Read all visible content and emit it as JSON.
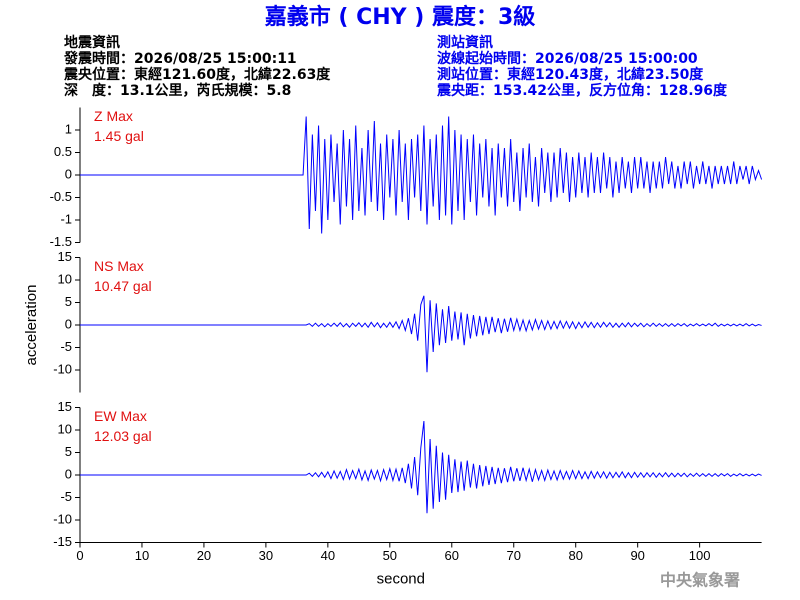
{
  "header": {
    "title": "嘉義市 ( CHY ) 震度：3級",
    "left": [
      "地震資訊",
      "發震時間：2026/08/25 15:00:11",
      "震央位置：東經121.60度，北緯22.63度",
      "深　度：13.1公里，芮氏規模：5.8"
    ],
    "right": [
      "測站資訊",
      "波線起始時間：2026/08/25 15:00:00",
      "測站位置：東經120.43度，北緯23.50度",
      "震央距：153.42公里，反方位角：128.96度"
    ]
  },
  "footer": "中央氣象署",
  "chart_data": [
    {
      "type": "line",
      "label": "Z Max",
      "max_label": "1.45 gal",
      "color": "#0000ff",
      "xlim": [
        0,
        110
      ],
      "ylim": [
        -1.5,
        1.5
      ],
      "yticks": [
        -1.5,
        -1,
        -0.5,
        0,
        0.5,
        1
      ],
      "x": [
        0,
        36,
        36.5,
        37,
        37.5,
        38,
        38.5,
        39,
        39.5,
        40,
        40.5,
        41,
        41.5,
        42,
        42.5,
        43,
        43.5,
        44,
        44.5,
        45,
        45.5,
        46,
        46.5,
        47,
        47.5,
        48,
        48.5,
        49,
        49.5,
        50,
        50.5,
        51,
        51.5,
        52,
        52.5,
        53,
        53.5,
        54,
        54.5,
        55,
        55.5,
        56,
        56.5,
        57,
        57.5,
        58,
        58.5,
        59,
        59.5,
        60,
        60.5,
        61,
        61.5,
        62,
        62.5,
        63,
        63.5,
        64,
        64.5,
        65,
        65.5,
        66,
        66.5,
        67,
        67.5,
        68,
        68.5,
        69,
        69.5,
        70,
        70.5,
        71,
        71.5,
        72,
        72.5,
        73,
        73.5,
        74,
        74.5,
        75,
        75.5,
        76,
        76.5,
        77,
        77.5,
        78,
        78.5,
        79,
        79.5,
        80,
        80.5,
        81,
        81.5,
        82,
        82.5,
        83,
        83.5,
        84,
        84.5,
        85,
        85.5,
        86,
        86.5,
        87,
        87.5,
        88,
        88.5,
        89,
        89.5,
        90,
        90.5,
        91,
        91.5,
        92,
        92.5,
        93,
        93.5,
        94,
        94.5,
        95,
        95.5,
        96,
        96.5,
        97,
        97.5,
        98,
        98.5,
        99,
        99.5,
        100,
        100.5,
        101,
        101.5,
        102,
        102.5,
        103,
        103.5,
        104,
        104.5,
        105,
        105.5,
        106,
        106.5,
        107,
        107.5,
        108,
        108.5,
        109,
        109.5,
        110
      ],
      "values": [
        0,
        0,
        1.3,
        -1.2,
        0.9,
        -0.8,
        1.1,
        -1.3,
        0.8,
        -1.0,
        0.9,
        -0.6,
        0.7,
        -1.1,
        1.0,
        -0.7,
        0.8,
        -1.0,
        1.1,
        -0.8,
        0.6,
        -0.9,
        1.0,
        -0.6,
        1.2,
        -0.8,
        0.7,
        -1.0,
        0.9,
        -0.5,
        0.8,
        -0.9,
        1.0,
        -0.6,
        0.7,
        -1.0,
        0.8,
        -0.5,
        0.9,
        -0.8,
        1.1,
        -1.1,
        0.8,
        -0.7,
        0.9,
        -1.0,
        1.1,
        -0.9,
        1.3,
        -1.1,
        1.0,
        -0.8,
        0.9,
        -1.0,
        0.8,
        -0.6,
        0.9,
        -0.9,
        0.7,
        -0.5,
        0.8,
        -0.7,
        0.6,
        -0.9,
        0.7,
        -0.5,
        0.6,
        -0.7,
        0.8,
        -0.6,
        0.5,
        -0.8,
        0.6,
        -0.5,
        0.7,
        -0.6,
        0.4,
        -0.7,
        0.6,
        -0.4,
        0.5,
        -0.6,
        0.5,
        -0.5,
        0.6,
        -0.4,
        0.5,
        -0.6,
        0.4,
        -0.5,
        0.5,
        -0.4,
        0.4,
        -0.5,
        0.5,
        -0.4,
        0.4,
        -0.4,
        0.5,
        -0.3,
        0.4,
        -0.5,
        0.3,
        -0.4,
        0.4,
        -0.3,
        0.3,
        -0.4,
        0.4,
        -0.3,
        0.4,
        -0.3,
        0.3,
        -0.4,
        0.3,
        -0.3,
        0.3,
        -0.3,
        0.4,
        -0.2,
        0.3,
        -0.3,
        0.2,
        -0.3,
        0.3,
        -0.2,
        0.3,
        -0.3,
        0.2,
        -0.2,
        0.3,
        -0.2,
        0.2,
        -0.3,
        0.2,
        -0.2,
        0.2,
        -0.2,
        0.2,
        -0.2,
        0.3,
        -0.2,
        0.2,
        -0.1,
        0.2,
        -0.2,
        0.2,
        -0.1,
        0.1,
        -0.1
      ]
    },
    {
      "type": "line",
      "label": "NS Max",
      "max_label": "10.47 gal",
      "color": "#0000ff",
      "ylabel": "acceleration",
      "xlim": [
        0,
        110
      ],
      "ylim": [
        -15,
        15
      ],
      "yticks": [
        -10,
        -5,
        0,
        5,
        10,
        15
      ],
      "x": [
        0,
        36,
        36.5,
        37,
        37.5,
        38,
        38.5,
        39,
        39.5,
        40,
        40.5,
        41,
        41.5,
        42,
        42.5,
        43,
        43.5,
        44,
        44.5,
        45,
        45.5,
        46,
        46.5,
        47,
        47.5,
        48,
        48.5,
        49,
        49.5,
        50,
        50.5,
        51,
        51.5,
        52,
        52.5,
        53,
        53.5,
        54,
        54.5,
        55,
        55.5,
        56,
        56.5,
        57,
        57.5,
        58,
        58.5,
        59,
        59.5,
        60,
        60.5,
        61,
        61.5,
        62,
        62.5,
        63,
        63.5,
        64,
        64.5,
        65,
        65.5,
        66,
        66.5,
        67,
        67.5,
        68,
        68.5,
        69,
        69.5,
        70,
        70.5,
        71,
        71.5,
        72,
        72.5,
        73,
        73.5,
        74,
        74.5,
        75,
        75.5,
        76,
        76.5,
        77,
        77.5,
        78,
        78.5,
        79,
        79.5,
        80,
        80.5,
        81,
        81.5,
        82,
        82.5,
        83,
        83.5,
        84,
        84.5,
        85,
        85.5,
        86,
        86.5,
        87,
        87.5,
        88,
        88.5,
        89,
        89.5,
        90,
        90.5,
        91,
        91.5,
        92,
        92.5,
        93,
        93.5,
        94,
        94.5,
        95,
        95.5,
        96,
        96.5,
        97,
        97.5,
        98,
        98.5,
        99,
        99.5,
        100,
        100.5,
        101,
        101.5,
        102,
        102.5,
        103,
        103.5,
        104,
        104.5,
        105,
        105.5,
        106,
        106.5,
        107,
        107.5,
        108,
        108.5,
        109,
        109.5,
        110
      ],
      "values": [
        0,
        0,
        0,
        0.3,
        -0.3,
        0.4,
        -0.3,
        0.3,
        -0.4,
        0.3,
        -0.3,
        0.4,
        -0.3,
        0.5,
        -0.4,
        0.3,
        -0.5,
        0.4,
        -0.3,
        0.5,
        -0.4,
        0.4,
        -0.5,
        0.6,
        -0.4,
        0.5,
        -0.6,
        0.4,
        -0.5,
        0.6,
        -0.5,
        0.7,
        -0.8,
        1.0,
        -1.2,
        1.5,
        -2.0,
        2.5,
        -3.5,
        4.5,
        6.5,
        -10.5,
        5.5,
        -6.0,
        4.8,
        -4.5,
        3.5,
        -4.0,
        4.2,
        -3.5,
        3.0,
        -3.2,
        2.8,
        -4.5,
        2.5,
        -3.0,
        2.2,
        -2.5,
        2.0,
        -2.3,
        1.8,
        -2.0,
        1.8,
        -1.6,
        1.5,
        -1.8,
        1.4,
        -1.5,
        1.6,
        -1.2,
        1.3,
        -1.2,
        1.1,
        -1.3,
        1.0,
        -1.1,
        1.2,
        -0.9,
        1.0,
        -1.0,
        0.9,
        -0.9,
        0.8,
        -0.8,
        0.9,
        -0.7,
        0.8,
        -0.7,
        0.7,
        -0.8,
        0.6,
        -0.6,
        0.7,
        -0.5,
        0.6,
        -0.6,
        0.5,
        -0.5,
        0.6,
        -0.4,
        0.5,
        -0.5,
        0.4,
        -0.5,
        0.4,
        -0.4,
        0.5,
        -0.4,
        0.4,
        -0.3,
        0.4,
        -0.4,
        0.3,
        -0.3,
        0.4,
        -0.3,
        0.3,
        -0.3,
        0.3,
        -0.3,
        0.3,
        -0.3,
        0.3,
        -0.2,
        0.3,
        -0.3,
        0.2,
        -0.2,
        0.3,
        -0.2,
        0.2,
        -0.2,
        0.3,
        -0.2,
        0.4,
        -0.3,
        0.2,
        -0.2,
        0.2,
        -0.2,
        0.2,
        -0.2,
        0.2,
        -0.2,
        0.3,
        -0.2,
        0.2,
        -0.2,
        0.1,
        -0.1
      ]
    },
    {
      "type": "line",
      "label": "EW Max",
      "max_label": "12.03 gal",
      "color": "#0000ff",
      "xlabel": "second",
      "xlim": [
        0,
        110
      ],
      "ylim": [
        -15,
        15
      ],
      "yticks": [
        -15,
        -10,
        -5,
        0,
        5,
        10,
        15
      ],
      "xticks": [
        0,
        10,
        20,
        30,
        40,
        50,
        60,
        70,
        80,
        90,
        100
      ],
      "x": [
        0,
        36,
        36.5,
        37,
        37.5,
        38,
        38.5,
        39,
        39.5,
        40,
        40.5,
        41,
        41.5,
        42,
        42.5,
        43,
        43.5,
        44,
        44.5,
        45,
        45.5,
        46,
        46.5,
        47,
        47.5,
        48,
        48.5,
        49,
        49.5,
        50,
        50.5,
        51,
        51.5,
        52,
        52.5,
        53,
        53.5,
        54,
        54.5,
        55,
        55.5,
        56,
        56.5,
        57,
        57.5,
        58,
        58.5,
        59,
        59.5,
        60,
        60.5,
        61,
        61.5,
        62,
        62.5,
        63,
        63.5,
        64,
        64.5,
        65,
        65.5,
        66,
        66.5,
        67,
        67.5,
        68,
        68.5,
        69,
        69.5,
        70,
        70.5,
        71,
        71.5,
        72,
        72.5,
        73,
        73.5,
        74,
        74.5,
        75,
        75.5,
        76,
        76.5,
        77,
        77.5,
        78,
        78.5,
        79,
        79.5,
        80,
        80.5,
        81,
        81.5,
        82,
        82.5,
        83,
        83.5,
        84,
        84.5,
        85,
        85.5,
        86,
        86.5,
        87,
        87.5,
        88,
        88.5,
        89,
        89.5,
        90,
        90.5,
        91,
        91.5,
        92,
        92.5,
        93,
        93.5,
        94,
        94.5,
        95,
        95.5,
        96,
        96.5,
        97,
        97.5,
        98,
        98.5,
        99,
        99.5,
        100,
        100.5,
        101,
        101.5,
        102,
        102.5,
        103,
        103.5,
        104,
        104.5,
        105,
        105.5,
        106,
        106.5,
        107,
        107.5,
        108,
        108.5,
        109,
        109.5,
        110
      ],
      "values": [
        0,
        0,
        0,
        0.4,
        -0.3,
        0.5,
        -0.4,
        0.6,
        -0.5,
        0.7,
        -0.8,
        0.9,
        -0.7,
        0.8,
        -1.0,
        1.2,
        -0.9,
        1.0,
        -0.8,
        1.3,
        -1.1,
        0.9,
        -1.2,
        1.1,
        -0.9,
        1.0,
        -1.3,
        1.2,
        -1.0,
        1.4,
        -1.2,
        1.3,
        -1.4,
        1.6,
        -1.8,
        2.5,
        -3.0,
        4.0,
        -4.5,
        6.0,
        12.0,
        -8.5,
        8.0,
        -7.5,
        6.5,
        -6.0,
        5.0,
        -5.5,
        4.5,
        -4.0,
        3.5,
        -3.8,
        3.0,
        -3.5,
        3.2,
        -2.8,
        2.5,
        -3.0,
        2.2,
        -2.5,
        2.0,
        -2.2,
        1.8,
        -2.0,
        1.6,
        -1.8,
        1.5,
        -1.6,
        1.8,
        -1.4,
        1.5,
        -1.3,
        1.6,
        -1.2,
        1.3,
        -1.5,
        1.2,
        -1.1,
        1.0,
        -1.2,
        1.1,
        -1.0,
        0.9,
        -1.1,
        1.0,
        -0.9,
        0.8,
        -0.9,
        1.0,
        -0.8,
        0.9,
        -0.8,
        0.7,
        -0.8,
        0.8,
        -0.7,
        0.7,
        -0.6,
        0.7,
        -0.7,
        0.6,
        -0.6,
        0.6,
        -0.5,
        0.7,
        -0.6,
        0.5,
        -0.6,
        0.6,
        -0.5,
        0.5,
        -0.5,
        0.5,
        -0.4,
        0.5,
        -0.5,
        0.4,
        -0.4,
        0.5,
        -0.4,
        0.4,
        -0.4,
        0.4,
        -0.3,
        0.4,
        -0.4,
        0.3,
        -0.3,
        0.4,
        -0.3,
        0.3,
        -0.3,
        0.3,
        -0.3,
        0.3,
        -0.3,
        0.3,
        -0.2,
        0.3,
        -0.3,
        0.2,
        -0.2,
        0.3,
        -0.2,
        0.2,
        -0.2,
        0.2,
        -0.2,
        0.2,
        -0.1
      ]
    }
  ]
}
